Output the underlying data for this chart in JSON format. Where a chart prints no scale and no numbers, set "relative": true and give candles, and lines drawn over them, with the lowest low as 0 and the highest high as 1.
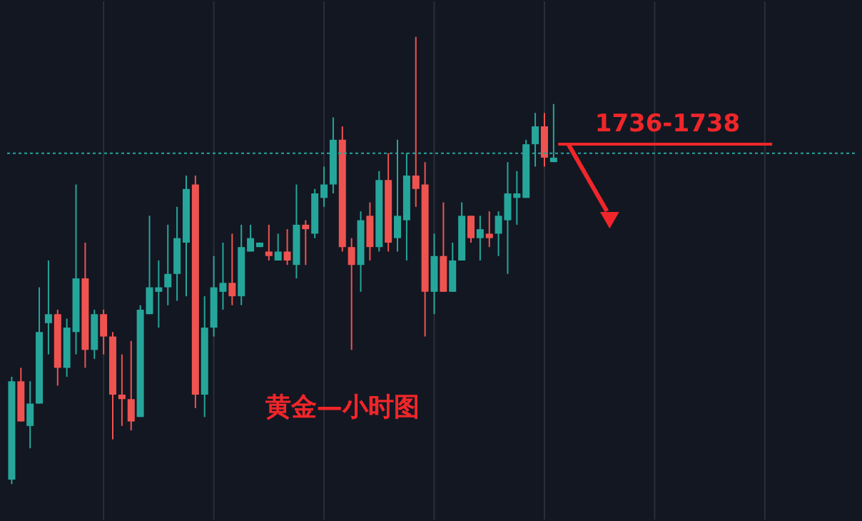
{
  "chart_data": {
    "type": "candlestick",
    "relative": true,
    "grid": "x",
    "legend": false,
    "categories": [
      null,
      null,
      null,
      null,
      null,
      null,
      null,
      null,
      null,
      null,
      null,
      null,
      null,
      null,
      null,
      null,
      null,
      null,
      null,
      null,
      null,
      null,
      null,
      null,
      null,
      null,
      null,
      null,
      null,
      null,
      null,
      null,
      null,
      null,
      null,
      null,
      null,
      null,
      null,
      null,
      null,
      null,
      null,
      null,
      null,
      null,
      null,
      null,
      null,
      null,
      null,
      null,
      null,
      null,
      null,
      null,
      null,
      null,
      null,
      null
    ],
    "ohlc": [
      [
        0.01,
        0.24,
        0,
        0.23
      ],
      [
        0.23,
        0.26,
        0.14,
        0.14
      ],
      [
        0.13,
        0.23,
        0.08,
        0.18
      ],
      [
        0.18,
        0.44,
        0.18,
        0.34
      ],
      [
        0.36,
        0.5,
        0.29,
        0.38
      ],
      [
        0.38,
        0.39,
        0.22,
        0.26
      ],
      [
        0.26,
        0.37,
        0.24,
        0.35
      ],
      [
        0.34,
        0.67,
        0.29,
        0.46
      ],
      [
        0.46,
        0.54,
        0.26,
        0.3
      ],
      [
        0.3,
        0.39,
        0.28,
        0.38
      ],
      [
        0.38,
        0.39,
        0.29,
        0.33
      ],
      [
        0.33,
        0.34,
        0.1,
        0.2
      ],
      [
        0.2,
        0.29,
        0.13,
        0.19
      ],
      [
        0.19,
        0.32,
        0.12,
        0.14
      ],
      [
        0.15,
        0.4,
        0.15,
        0.39
      ],
      [
        0.38,
        0.6,
        0.38,
        0.44
      ],
      [
        0.43,
        0.5,
        0.35,
        0.44
      ],
      [
        0.44,
        0.58,
        0.4,
        0.47
      ],
      [
        0.47,
        0.62,
        0.41,
        0.55
      ],
      [
        0.54,
        0.69,
        0.42,
        0.66
      ],
      [
        0.67,
        0.69,
        0.17,
        0.2
      ],
      [
        0.2,
        0.42,
        0.15,
        0.35
      ],
      [
        0.35,
        0.51,
        0.33,
        0.44
      ],
      [
        0.43,
        0.54,
        0.39,
        0.45
      ],
      [
        0.45,
        0.56,
        0.4,
        0.42
      ],
      [
        0.42,
        0.58,
        0.4,
        0.53
      ],
      [
        0.52,
        0.58,
        0.52,
        0.55
      ],
      [
        0.53,
        0.54,
        0.53,
        0.54
      ],
      [
        0.52,
        0.58,
        0.5,
        0.51
      ],
      [
        0.5,
        0.56,
        0.5,
        0.52
      ],
      [
        0.52,
        0.57,
        0.49,
        0.5
      ],
      [
        0.49,
        0.67,
        0.46,
        0.58
      ],
      [
        0.58,
        0.59,
        0.49,
        0.57
      ],
      [
        0.56,
        0.66,
        0.55,
        0.65
      ],
      [
        0.64,
        0.71,
        0.62,
        0.67
      ],
      [
        0.67,
        0.82,
        0.65,
        0.77
      ],
      [
        0.77,
        0.8,
        0.52,
        0.53
      ],
      [
        0.53,
        0.55,
        0.3,
        0.49
      ],
      [
        0.49,
        0.61,
        0.43,
        0.59
      ],
      [
        0.6,
        0.63,
        0.5,
        0.53
      ],
      [
        0.53,
        0.7,
        0.52,
        0.68
      ],
      [
        0.68,
        0.74,
        0.52,
        0.54
      ],
      [
        0.55,
        0.77,
        0.52,
        0.6
      ],
      [
        0.59,
        0.74,
        0.5,
        0.69
      ],
      [
        0.69,
        1,
        0.62,
        0.66
      ],
      [
        0.67,
        0.72,
        0.33,
        0.43
      ],
      [
        0.43,
        0.56,
        0.38,
        0.51
      ],
      [
        0.51,
        0.63,
        0.43,
        0.43
      ],
      [
        0.43,
        0.54,
        0.43,
        0.5
      ],
      [
        0.5,
        0.63,
        0.5,
        0.6
      ],
      [
        0.6,
        0.6,
        0.54,
        0.55
      ],
      [
        0.55,
        0.6,
        0.5,
        0.57
      ],
      [
        0.56,
        0.61,
        0.53,
        0.55
      ],
      [
        0.56,
        0.61,
        0.51,
        0.6
      ],
      [
        0.59,
        0.72,
        0.47,
        0.65
      ],
      [
        0.64,
        0.7,
        0.58,
        0.65
      ],
      [
        0.64,
        0.77,
        0.64,
        0.76
      ],
      [
        0.76,
        0.83,
        0.71,
        0.8
      ],
      [
        0.8,
        0.83,
        0.71,
        0.73
      ],
      [
        0.72,
        0.85,
        0.72,
        0.73
      ]
    ],
    "ref_lines": [
      {
        "axis": "y",
        "value": 0.74,
        "color": "#26a69a",
        "line_style": "dotted"
      }
    ],
    "annotations": [
      "1736-1738",
      "黄金—小时图"
    ]
  }
}
